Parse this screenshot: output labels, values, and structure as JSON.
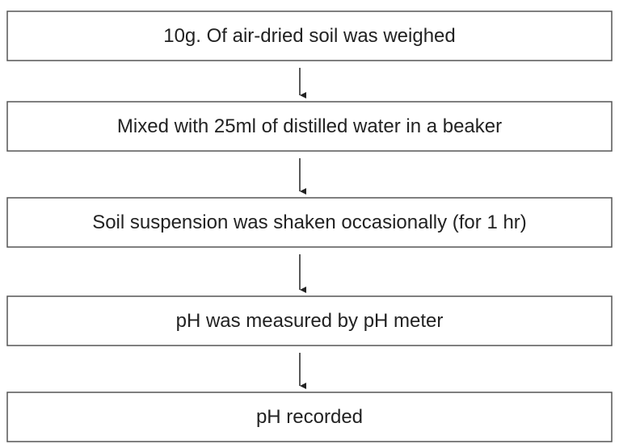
{
  "nodes": [
    {
      "label": "10g. Of air-dried soil was weighed"
    },
    {
      "label": "Mixed with 25ml of distilled water in a beaker"
    },
    {
      "label": "Soil suspension was shaken occasionally (for 1 hr)"
    },
    {
      "label": "pH was measured by pH meter"
    },
    {
      "label": "pH recorded"
    }
  ]
}
